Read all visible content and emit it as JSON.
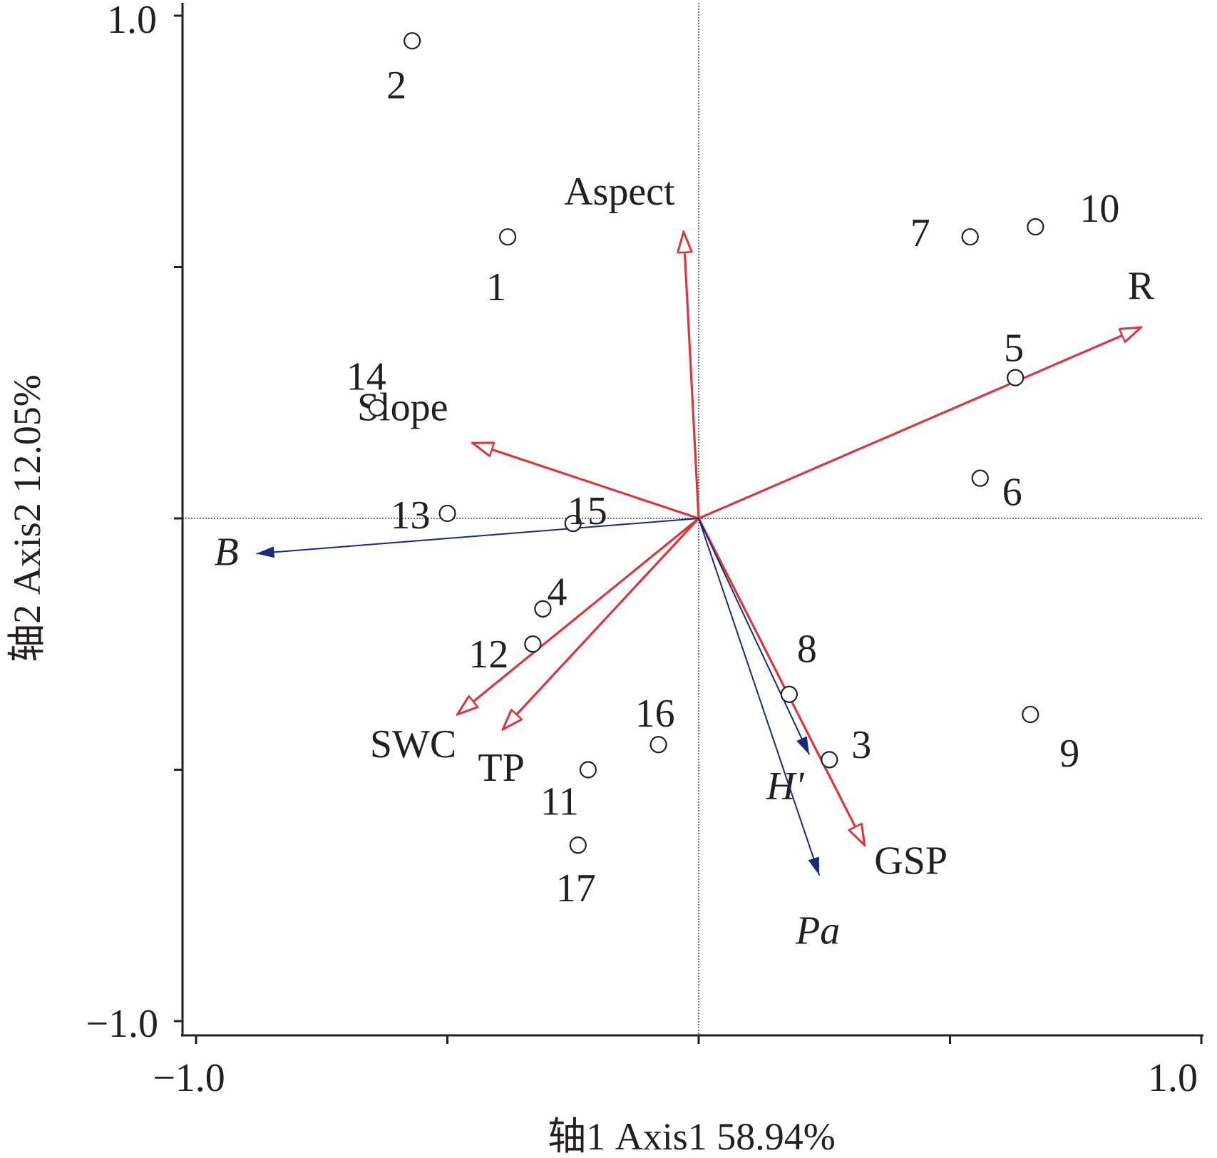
{
  "chart_data": {
    "type": "scatter",
    "subtype": "rda-biplot",
    "title": "",
    "xlabel": "轴1 Axis1 58.94%",
    "ylabel": "轴2 Axis2 12.05%",
    "xlim": [
      -1.0,
      1.0
    ],
    "ylim": [
      -1.0,
      1.0
    ],
    "x_tick_labels": [
      "−1.0",
      "1.0"
    ],
    "y_tick_labels": [
      "1.0",
      "−1.0"
    ],
    "x_ticks": [
      -1.0,
      -0.5,
      0.0,
      0.5,
      1.0
    ],
    "y_ticks": [
      1.0,
      0.5,
      0.0,
      -0.5,
      -1.0
    ],
    "zero_lines": true,
    "grid": false,
    "legend": "none",
    "sites": [
      {
        "label": "1",
        "x": -0.38,
        "y": 0.56
      },
      {
        "label": "2",
        "x": -0.57,
        "y": 0.95
      },
      {
        "label": "3",
        "x": 0.26,
        "y": -0.48
      },
      {
        "label": "4",
        "x": -0.31,
        "y": -0.18
      },
      {
        "label": "5",
        "x": 0.63,
        "y": 0.28
      },
      {
        "label": "6",
        "x": 0.56,
        "y": 0.08
      },
      {
        "label": "7",
        "x": 0.54,
        "y": 0.56
      },
      {
        "label": "8",
        "x": 0.18,
        "y": -0.35
      },
      {
        "label": "9",
        "x": 0.66,
        "y": -0.39
      },
      {
        "label": "10",
        "x": 0.67,
        "y": 0.58
      },
      {
        "label": "11",
        "x": -0.22,
        "y": -0.5
      },
      {
        "label": "12",
        "x": -0.33,
        "y": -0.25
      },
      {
        "label": "13",
        "x": -0.5,
        "y": 0.01
      },
      {
        "label": "14",
        "x": -0.64,
        "y": 0.22
      },
      {
        "label": "15",
        "x": -0.25,
        "y": -0.01
      },
      {
        "label": "16",
        "x": -0.08,
        "y": -0.45
      },
      {
        "label": "17",
        "x": -0.24,
        "y": -0.65
      }
    ],
    "environment_vectors": [
      {
        "name": "Aspect",
        "x": -0.03,
        "y": 0.57
      },
      {
        "name": "Slope",
        "x": -0.45,
        "y": 0.15
      },
      {
        "name": "R",
        "x": 0.88,
        "y": 0.38
      },
      {
        "name": "SWC",
        "x": -0.48,
        "y": -0.39
      },
      {
        "name": "TP",
        "x": -0.39,
        "y": -0.42
      },
      {
        "name": "GSP",
        "x": 0.33,
        "y": -0.65
      }
    ],
    "response_vectors": [
      {
        "name": "B",
        "x": -0.88,
        "y": -0.07
      },
      {
        "name": "H'",
        "x": 0.22,
        "y": -0.47
      },
      {
        "name": "Pa",
        "x": 0.24,
        "y": -0.71
      }
    ],
    "colors": {
      "environment": "#d9363e",
      "response": "#1b2a78",
      "axes": "#231f20"
    }
  }
}
